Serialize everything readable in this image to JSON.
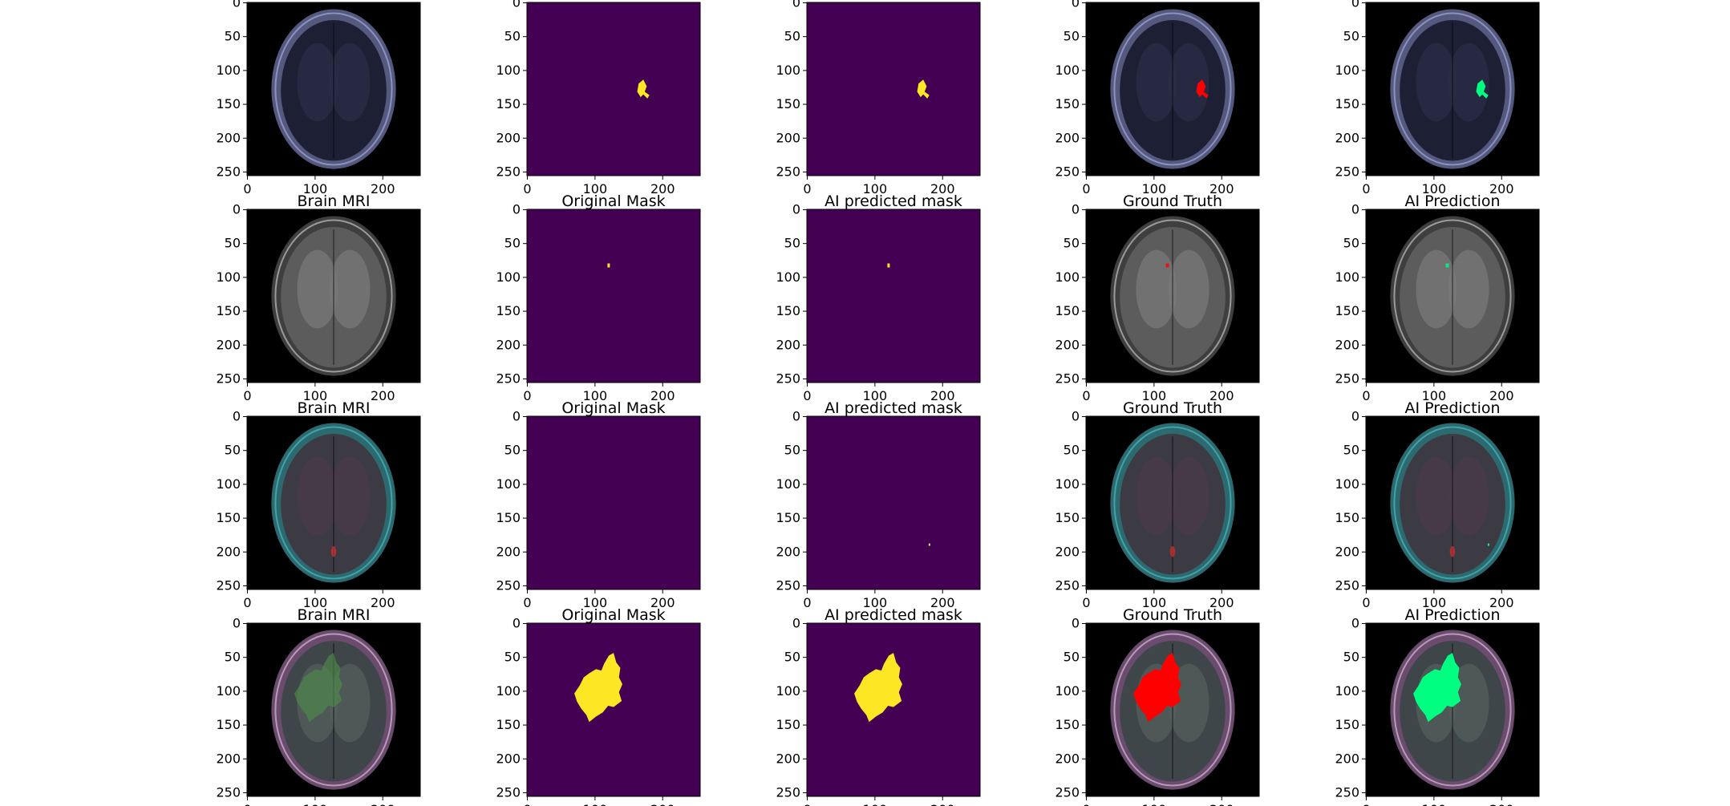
{
  "chart_data": {
    "type": "image-grid",
    "rows": 4,
    "cols": 5,
    "image_size": [
      256,
      256
    ],
    "axes": {
      "x_ticks": [
        "0",
        "100",
        "200"
      ],
      "y_ticks": [
        "0",
        "50",
        "100",
        "150",
        "200",
        "250"
      ],
      "xlim": [
        0,
        256
      ],
      "ylim": [
        256,
        0
      ]
    },
    "column_titles": [
      "Brain MRI",
      "Original Mask",
      "AI predicted mask",
      "Ground Truth",
      "AI Prediction"
    ],
    "row_titles_visible": [
      false,
      true,
      true,
      true
    ],
    "colors": {
      "mask_background": "#440154",
      "mask_foreground": "#fde725",
      "ground_truth_overlay": "#ff0000",
      "prediction_overlay": "#00ff80",
      "image_background": "#000000"
    },
    "rows_detail": [
      {
        "mri_tone": "dark-blue",
        "original_mask": "small-right-lesion",
        "predicted_mask": "small-right-lesion"
      },
      {
        "mri_tone": "gray",
        "original_mask": "tiny-dot",
        "predicted_mask": "tiny-dot"
      },
      {
        "mri_tone": "teal-magenta",
        "original_mask": "empty",
        "predicted_mask": "tiny-dot-lower-right"
      },
      {
        "mri_tone": "purple-green",
        "original_mask": "large-left-lesion",
        "predicted_mask": "large-left-lesion"
      }
    ]
  }
}
